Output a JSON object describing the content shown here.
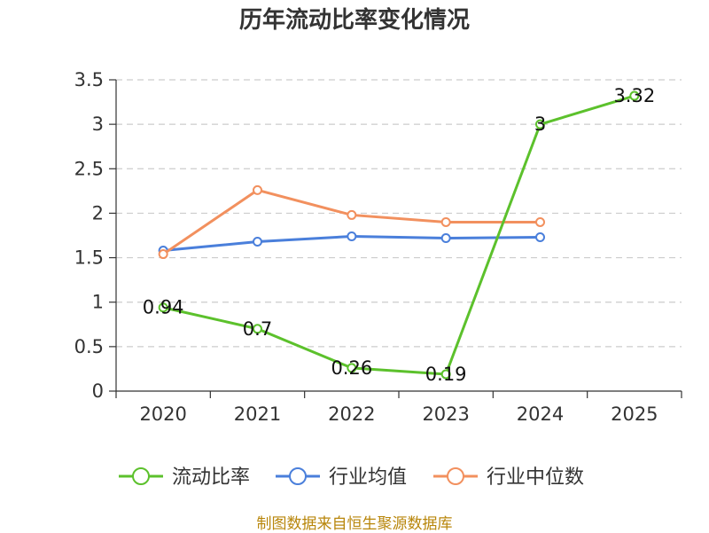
{
  "chart_data": {
    "type": "line",
    "title": "历年流动比率变化情况",
    "categories": [
      "2020",
      "2021",
      "2022",
      "2023",
      "2024",
      "2025"
    ],
    "ylim": [
      0,
      3.5
    ],
    "yticks": [
      "0",
      "0.5",
      "1",
      "1.5",
      "2",
      "2.5",
      "3",
      "3.5"
    ],
    "ytick_values": [
      0,
      0.5,
      1,
      1.5,
      2,
      2.5,
      3,
      3.5
    ],
    "grid": true,
    "legend_position": "bottom",
    "series": [
      {
        "name": "流动比率",
        "color": "#5cc12c",
        "values": [
          0.94,
          0.7,
          0.26,
          0.19,
          3,
          3.32
        ],
        "labels": [
          "0.94",
          "0.7",
          "0.26",
          "0.19",
          "3",
          "3.32"
        ],
        "show_labels": true
      },
      {
        "name": "行业均值",
        "color": "#4a7fdb",
        "values": [
          1.58,
          1.68,
          1.74,
          1.72,
          1.73,
          null
        ],
        "show_labels": false
      },
      {
        "name": "行业中位数",
        "color": "#f2905e",
        "values": [
          1.54,
          2.26,
          1.98,
          1.9,
          1.9,
          null
        ],
        "show_labels": false
      }
    ]
  },
  "source_text": "制图数据来自恒生聚源数据库"
}
